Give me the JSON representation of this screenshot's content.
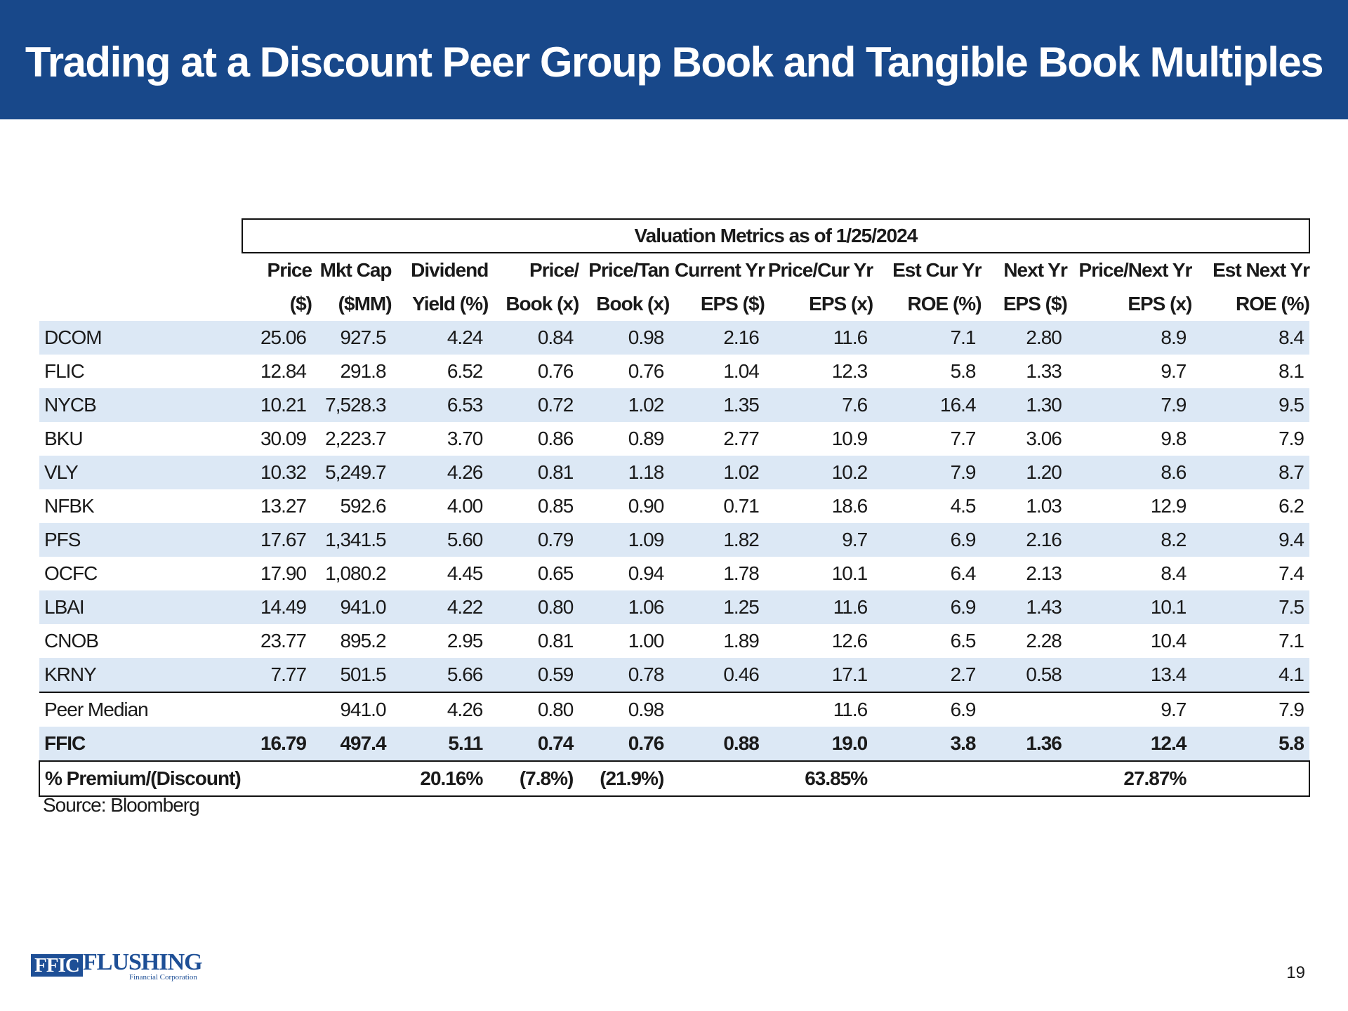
{
  "title": "Trading at a Discount Peer Group Book and Tangible Book Multiples",
  "table": {
    "caption": "Valuation Metrics as of 1/25/2024",
    "header_row1": [
      "Price",
      "Mkt Cap",
      "Dividend",
      "Price/",
      "Price/Tan",
      "Current Yr",
      "Price/Cur Yr",
      "Est Cur Yr",
      "Next Yr",
      "Price/Next Yr",
      "Est Next Yr"
    ],
    "header_row2": [
      "($)",
      "($MM)",
      "Yield (%)",
      "Book (x)",
      "Book (x)",
      "EPS ($)",
      "EPS (x)",
      "ROE (%)",
      "EPS ($)",
      "EPS (x)",
      "ROE (%)"
    ],
    "rows": [
      [
        "DCOM",
        "25.06",
        "927.5",
        "4.24",
        "0.84",
        "0.98",
        "2.16",
        "11.6",
        "7.1",
        "2.80",
        "8.9",
        "8.4"
      ],
      [
        "FLIC",
        "12.84",
        "291.8",
        "6.52",
        "0.76",
        "0.76",
        "1.04",
        "12.3",
        "5.8",
        "1.33",
        "9.7",
        "8.1"
      ],
      [
        "NYCB",
        "10.21",
        "7,528.3",
        "6.53",
        "0.72",
        "1.02",
        "1.35",
        "7.6",
        "16.4",
        "1.30",
        "7.9",
        "9.5"
      ],
      [
        "BKU",
        "30.09",
        "2,223.7",
        "3.70",
        "0.86",
        "0.89",
        "2.77",
        "10.9",
        "7.7",
        "3.06",
        "9.8",
        "7.9"
      ],
      [
        "VLY",
        "10.32",
        "5,249.7",
        "4.26",
        "0.81",
        "1.18",
        "1.02",
        "10.2",
        "7.9",
        "1.20",
        "8.6",
        "8.7"
      ],
      [
        "NFBK",
        "13.27",
        "592.6",
        "4.00",
        "0.85",
        "0.90",
        "0.71",
        "18.6",
        "4.5",
        "1.03",
        "12.9",
        "6.2"
      ],
      [
        "PFS",
        "17.67",
        "1,341.5",
        "5.60",
        "0.79",
        "1.09",
        "1.82",
        "9.7",
        "6.9",
        "2.16",
        "8.2",
        "9.4"
      ],
      [
        "OCFC",
        "17.90",
        "1,080.2",
        "4.45",
        "0.65",
        "0.94",
        "1.78",
        "10.1",
        "6.4",
        "2.13",
        "8.4",
        "7.4"
      ],
      [
        "LBAI",
        "14.49",
        "941.0",
        "4.22",
        "0.80",
        "1.06",
        "1.25",
        "11.6",
        "6.9",
        "1.43",
        "10.1",
        "7.5"
      ],
      [
        "CNOB",
        "23.77",
        "895.2",
        "2.95",
        "0.81",
        "1.00",
        "1.89",
        "12.6",
        "6.5",
        "2.28",
        "10.4",
        "7.1"
      ],
      [
        "KRNY",
        "7.77",
        "501.5",
        "5.66",
        "0.59",
        "0.78",
        "0.46",
        "17.1",
        "2.7",
        "0.58",
        "13.4",
        "4.1"
      ]
    ],
    "median": [
      "Peer Median",
      "",
      "941.0",
      "4.26",
      "0.80",
      "0.98",
      "",
      "11.6",
      "6.9",
      "",
      "9.7",
      "7.9"
    ],
    "ffic": [
      "FFIC",
      "16.79",
      "497.4",
      "5.11",
      "0.74",
      "0.76",
      "0.88",
      "19.0",
      "3.8",
      "1.36",
      "12.4",
      "5.8"
    ],
    "premium": [
      "% Premium/(Discount)",
      "",
      "",
      "20.16%",
      "(7.8%)",
      "(21.9%)",
      "",
      "63.85%",
      "",
      "",
      "27.87%",
      ""
    ]
  },
  "source": "Source: Bloomberg",
  "logo": {
    "box_text": "FFIC",
    "name": "FLUSHING",
    "sub": "Financial Corporation",
    "color": "#1e4f96"
  },
  "page_number": "19",
  "colors": {
    "header_bg": "#18488a",
    "row_shade": "#dce8f5"
  }
}
